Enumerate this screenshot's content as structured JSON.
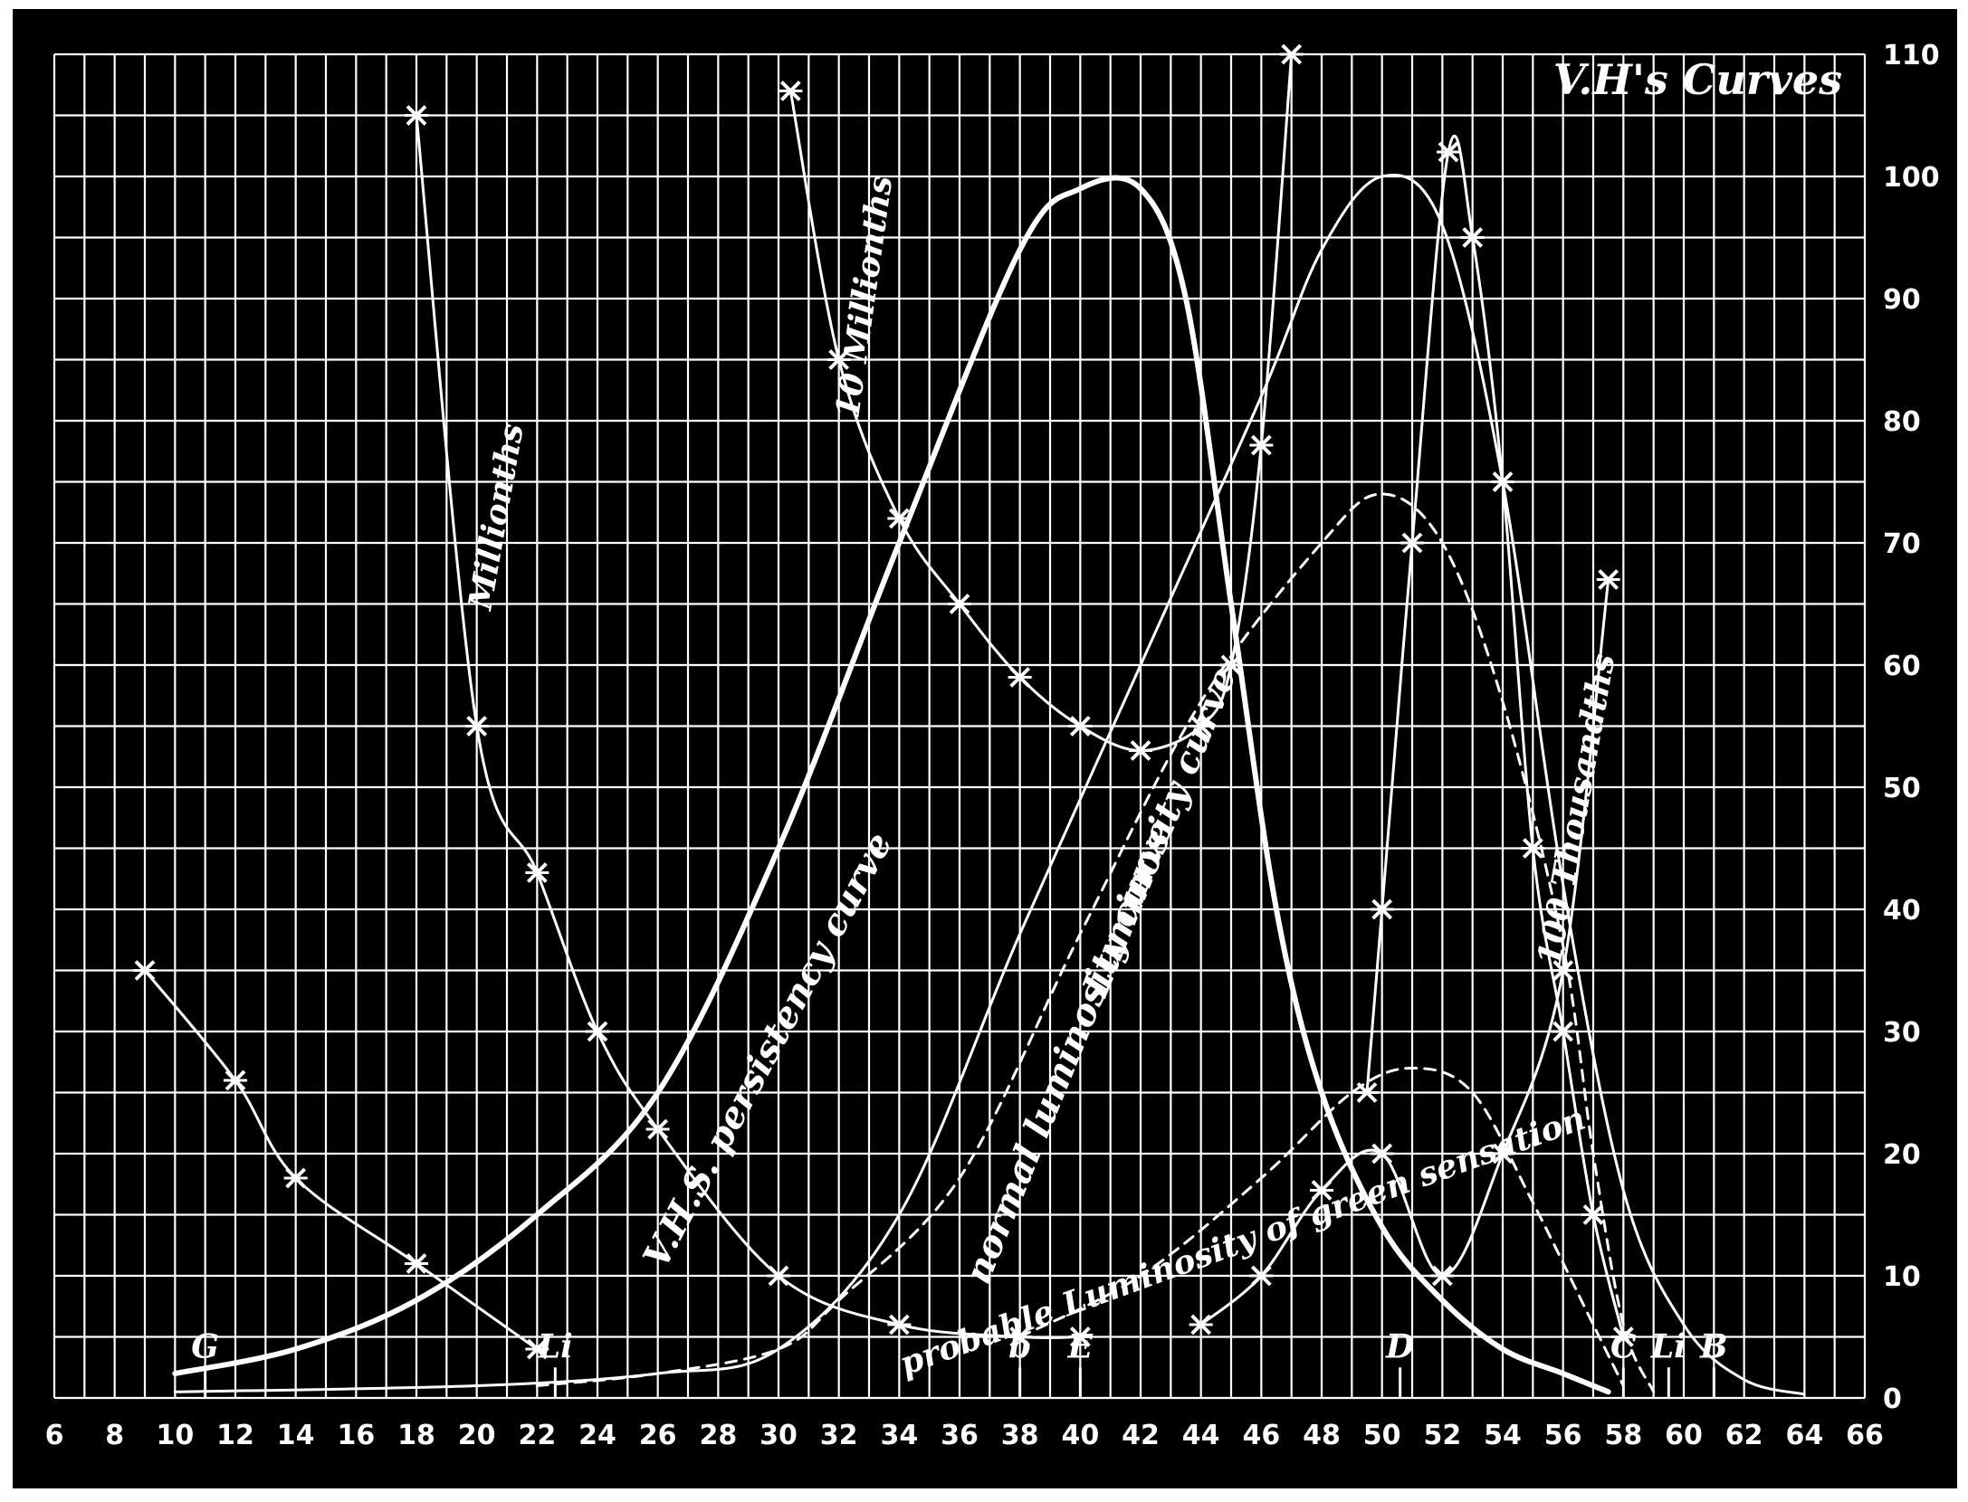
{
  "chart_data": {
    "type": "line",
    "title": "V.H's Curves",
    "xlim": [
      6,
      66
    ],
    "ylim": [
      0,
      110
    ],
    "grid": true,
    "x_ticks": [
      "6",
      "8",
      "10",
      "12",
      "14",
      "16",
      "18",
      "20",
      "22",
      "24",
      "26",
      "28",
      "30",
      "32",
      "34",
      "36",
      "38",
      "40",
      "42",
      "44",
      "46",
      "48",
      "50",
      "52",
      "54",
      "56",
      "58",
      "60",
      "62",
      "64",
      "66"
    ],
    "y_ticks": [
      "0",
      "10",
      "20",
      "30",
      "40",
      "50",
      "60",
      "70",
      "80",
      "90",
      "100",
      "110"
    ],
    "series": [
      {
        "name": "V.H.S. persistency curve",
        "style": "thick",
        "x": [
          10,
          14,
          18,
          22,
          26,
          30,
          34,
          38,
          40,
          42,
          43.5,
          45,
          46.5,
          48,
          50,
          52,
          54,
          56,
          57.5
        ],
        "y": [
          2,
          4,
          8,
          15,
          25,
          45,
          70,
          94,
          99,
          99,
          90,
          65,
          40,
          25,
          14,
          8,
          4,
          2,
          0.5
        ]
      },
      {
        "name": "normal luminosity curve",
        "style": "thin",
        "x": [
          10,
          20,
          26,
          30,
          34,
          38,
          42,
          46,
          48,
          50,
          52,
          54,
          56,
          58,
          60,
          62,
          64
        ],
        "y": [
          0.5,
          1,
          2,
          4,
          15,
          38,
          60,
          82,
          94,
          100,
          96,
          75,
          42,
          17,
          6,
          1.5,
          0.3
        ]
      },
      {
        "name": "Luminosity curve",
        "style": "dashed",
        "x": [
          22,
          26,
          30,
          32,
          36,
          40,
          44,
          48,
          50,
          52,
          54,
          56,
          57,
          58,
          59
        ],
        "y": [
          1,
          2,
          4,
          8,
          18,
          38,
          57,
          70,
          74,
          70,
          57,
          37,
          20,
          6,
          0.5
        ]
      },
      {
        "name": "probable Luminosity of green sensation",
        "style": "dashed",
        "x": [
          38,
          42,
          46,
          49,
          51,
          53,
          55,
          57,
          58
        ],
        "y": [
          5,
          10,
          18,
          25,
          27,
          25,
          16,
          6,
          1
        ]
      },
      {
        "name": "Millionths",
        "style": "thin-marked",
        "x": [
          18,
          20,
          22,
          24,
          26,
          30,
          34,
          38,
          40
        ],
        "y": [
          105,
          55,
          43,
          30,
          22,
          10,
          6,
          5,
          5
        ]
      },
      {
        "name": "10 Millionths",
        "style": "thin-marked",
        "x": [
          30.4,
          32,
          34,
          36,
          38,
          40,
          42,
          44,
          45,
          46,
          47
        ],
        "y": [
          107,
          85,
          72,
          65,
          59,
          55,
          53,
          55,
          60,
          78,
          110
        ]
      },
      {
        "name": "100 Thousandths",
        "style": "thin-marked",
        "x": [
          44,
          46,
          48,
          50,
          52,
          54,
          56,
          57.5
        ],
        "y": [
          6,
          10,
          17,
          20,
          10,
          20,
          35,
          67
        ]
      },
      {
        "name": "",
        "style": "thin-marked",
        "x": [
          9,
          12,
          14,
          18,
          22
        ],
        "y": [
          35,
          26,
          18,
          11,
          4
        ]
      },
      {
        "name": "",
        "style": "thin-marked",
        "x": [
          49.5,
          50,
          51,
          52.2,
          53,
          54,
          55,
          56,
          57,
          58
        ],
        "y": [
          25,
          40,
          70,
          102,
          95,
          75,
          45,
          30,
          15,
          5
        ]
      }
    ],
    "annotations": [
      {
        "text": "V.H.S. persistency curve"
      },
      {
        "text": "normal luminosity curve"
      },
      {
        "text": "Luminosity curve"
      },
      {
        "text": "probable Luminosity of green sensation"
      },
      {
        "text": "Millionths"
      },
      {
        "text": "10 Millionths"
      },
      {
        "text": "100 Thousandths"
      }
    ],
    "spectral_markers": [
      "G",
      "Li",
      "b",
      "E",
      "D",
      "C",
      "Li",
      "B"
    ]
  }
}
